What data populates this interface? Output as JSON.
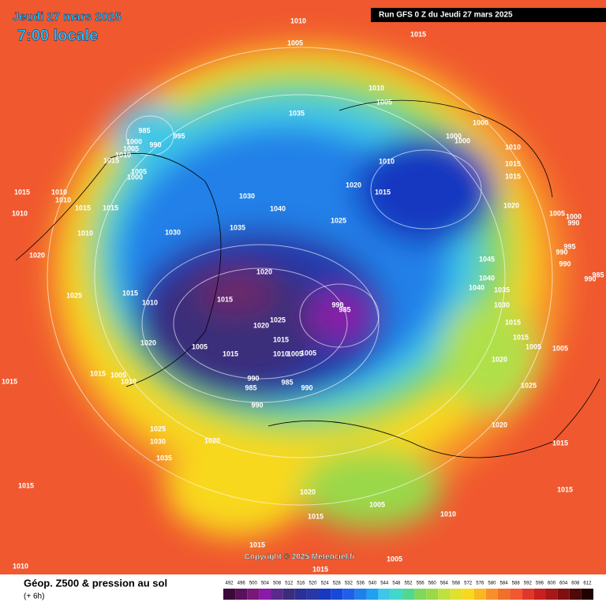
{
  "header": {
    "date": "Jeudi 27 mars 2025",
    "time": "7:00 locale",
    "run": "Run GFS 0 Z du Jeudi 27 mars 2025"
  },
  "copyright": "Copyright © 2025 Meteociel.fr",
  "footer": {
    "title": "Géop. Z500 & pression au sol",
    "lead": "(+ 6h)"
  },
  "scale": {
    "ticks": [
      492,
      496,
      500,
      504,
      508,
      512,
      516,
      520,
      524,
      528,
      532,
      536,
      540,
      544,
      548,
      552,
      556,
      560,
      564,
      568,
      572,
      576,
      580,
      584,
      588,
      592,
      596,
      600,
      604,
      608,
      612
    ]
  },
  "pressure_labels": [
    1010,
    1005,
    1015,
    1010,
    1005,
    1035,
    1000,
    1000,
    1000,
    1010,
    1015,
    1015,
    1010,
    1020,
    1015,
    1025,
    1020,
    1005,
    1000,
    990,
    995,
    990,
    990,
    985,
    990,
    1045,
    1040,
    1040,
    1035,
    1030,
    1015,
    1015,
    1005,
    1005,
    1020,
    1025,
    1020,
    1015,
    1015,
    1005,
    1005,
    1015,
    1010,
    1020,
    1015,
    1015,
    1020,
    1025,
    1030,
    1035,
    1015,
    1010,
    1015,
    1010,
    1010,
    1010,
    1015,
    1015,
    1010,
    1020,
    1025,
    1015,
    1010,
    1020,
    1015,
    1005,
    1010,
    1015,
    985,
    1000,
    1005,
    990,
    995,
    1010,
    1015,
    1005,
    1000,
    1030,
    1040,
    1035,
    1030,
    1020,
    1015,
    1020,
    1025,
    1015,
    1010,
    1005,
    1005,
    1005,
    1015,
    990,
    985,
    990,
    985,
    985,
    990,
    990
  ]
}
